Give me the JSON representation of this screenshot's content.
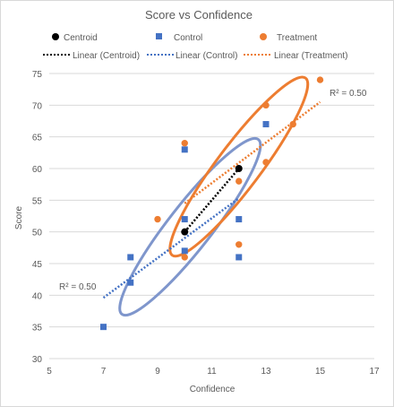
{
  "chart_data": {
    "type": "scatter",
    "title": "Score vs Confidence",
    "xlabel": "Confidence",
    "ylabel": "Score",
    "xlim": [
      5,
      17
    ],
    "ylim": [
      30,
      75
    ],
    "x_ticks": [
      "5",
      "7",
      "9",
      "11",
      "13",
      "15",
      "17"
    ],
    "y_ticks": [
      "30",
      "35",
      "40",
      "45",
      "50",
      "55",
      "60",
      "65",
      "70",
      "75"
    ],
    "grid": "horizontal",
    "legend_position": "top",
    "legend": {
      "centroid": "Centroid",
      "control": "Control",
      "treatment": "Treatment",
      "linear_centroid": "Linear (Centroid)",
      "linear_control": "Linear (Control)",
      "linear_treatment": "Linear (Treatment)"
    },
    "series": [
      {
        "name": "Centroid",
        "marker": "circle",
        "color": "#000000",
        "points": [
          [
            10,
            50
          ],
          [
            12,
            60
          ]
        ]
      },
      {
        "name": "Control",
        "marker": "square",
        "color": "#4472C4",
        "points": [
          [
            7,
            35
          ],
          [
            8,
            42
          ],
          [
            8,
            46
          ],
          [
            10,
            47
          ],
          [
            10,
            52
          ],
          [
            10,
            63
          ],
          [
            12,
            46
          ],
          [
            12,
            52
          ],
          [
            13,
            67
          ]
        ]
      },
      {
        "name": "Treatment",
        "marker": "circle",
        "color": "#ED7D31",
        "points": [
          [
            9,
            52
          ],
          [
            10,
            46
          ],
          [
            10,
            64
          ],
          [
            12,
            48
          ],
          [
            12,
            58
          ],
          [
            13,
            61
          ],
          [
            13,
            70
          ],
          [
            14,
            67
          ],
          [
            15,
            74
          ]
        ]
      }
    ],
    "trendlines": [
      {
        "name": "Linear (Centroid)",
        "color": "#000000",
        "from": [
          10,
          50
        ],
        "to": [
          12,
          60
        ]
      },
      {
        "name": "Linear (Control)",
        "color": "#4472C4",
        "from": [
          7,
          39.6
        ],
        "to": [
          12,
          55.3
        ]
      },
      {
        "name": "Linear (Treatment)",
        "color": "#ED7D31",
        "from": [
          10,
          54.5
        ],
        "to": [
          15,
          70.5
        ]
      }
    ],
    "r_squared_labels": [
      "R² = 0.50",
      "R² = 0.50"
    ],
    "ellipses": [
      {
        "color": "#7F96CC",
        "center": [
          10.2,
          50.8
        ],
        "axis_x": 1.3,
        "axis_y": 8.5,
        "angle_deg": 38
      },
      {
        "color": "#ED7D31",
        "center": [
          12.0,
          60.3
        ],
        "axis_x": 1.3,
        "axis_y": 8.5,
        "angle_deg": 37
      }
    ]
  }
}
